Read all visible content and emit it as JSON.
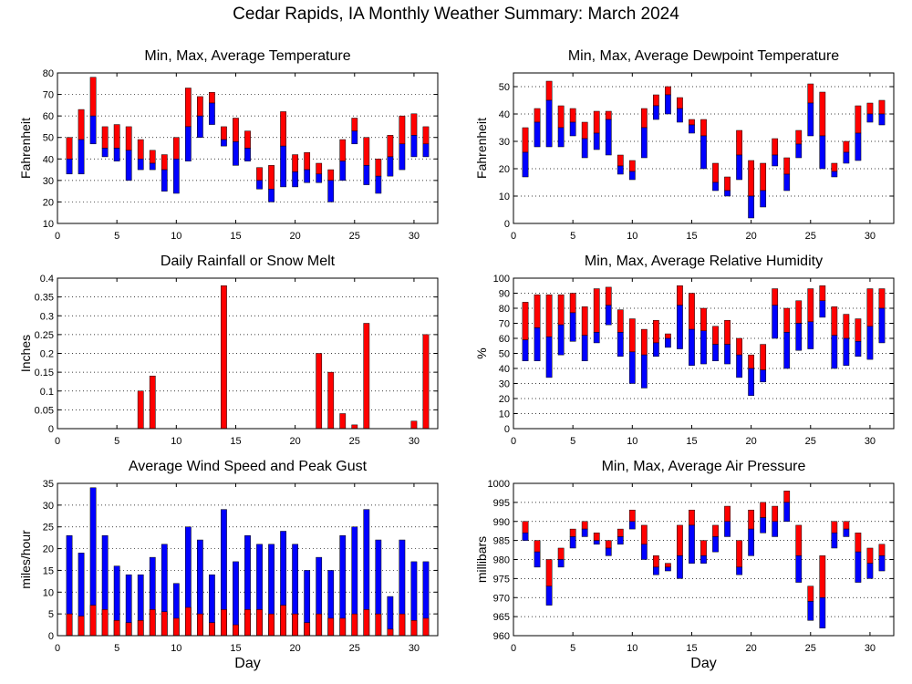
{
  "title": "Cedar Rapids, IA Monthly Weather Summary: March 2024",
  "colors": {
    "upper": "#ff0000",
    "lower": "#0000ff",
    "rain": "#ff0000"
  },
  "chart_data": [
    {
      "id": "temperature",
      "type": "bar",
      "title": "Min, Max, Average Temperature",
      "ylabel": "Fahrenheit",
      "xlabel": "",
      "xlim": [
        0,
        32
      ],
      "ylim": [
        10,
        80
      ],
      "xticks": [
        0,
        5,
        10,
        15,
        20,
        25,
        30
      ],
      "yticks": [
        10,
        20,
        30,
        40,
        50,
        60,
        70,
        80
      ],
      "grid": true,
      "series": [
        {
          "name": "Min",
          "values": [
            33,
            33,
            47,
            41,
            39,
            30,
            35,
            35,
            25,
            24,
            39,
            50,
            56,
            46,
            37,
            39,
            26,
            20,
            27,
            27,
            29,
            29,
            20,
            30,
            47,
            28,
            24,
            32,
            35,
            41,
            41
          ]
        },
        {
          "name": "Average",
          "values": [
            40,
            49,
            60,
            45,
            45,
            44,
            40,
            38,
            35,
            40,
            55,
            60,
            66,
            49,
            48,
            45,
            30,
            26,
            46,
            34,
            35,
            33,
            30,
            39,
            53,
            37,
            32,
            41,
            47,
            51,
            47
          ]
        },
        {
          "name": "Max",
          "values": [
            50,
            63,
            78,
            55,
            56,
            55,
            49,
            44,
            42,
            50,
            73,
            69,
            71,
            55,
            59,
            53,
            36,
            37,
            62,
            42,
            43,
            38,
            35,
            49,
            59,
            50,
            40,
            51,
            60,
            61,
            55
          ]
        }
      ]
    },
    {
      "id": "dewpoint",
      "type": "bar",
      "title": "Min, Max, Average Dewpoint Temperature",
      "ylabel": "Fahrenheit",
      "xlabel": "",
      "xlim": [
        0,
        32
      ],
      "ylim": [
        0,
        55
      ],
      "xticks": [
        0,
        5,
        10,
        15,
        20,
        25,
        30
      ],
      "yticks": [
        0,
        10,
        20,
        30,
        40,
        50
      ],
      "grid": true,
      "series": [
        {
          "name": "Min",
          "values": [
            17,
            28,
            28,
            28,
            32,
            24,
            27,
            25,
            18,
            16,
            24,
            38,
            40,
            37,
            33,
            20,
            12,
            10,
            16,
            2,
            6,
            21,
            12,
            24,
            32,
            20,
            17,
            22,
            23,
            37,
            36
          ]
        },
        {
          "name": "Average",
          "values": [
            26,
            37,
            45,
            35,
            37,
            31,
            33,
            38,
            21,
            19,
            35,
            43,
            47,
            42,
            36,
            32,
            15,
            12,
            25,
            10,
            12,
            25,
            18,
            29,
            44,
            32,
            19,
            26,
            33,
            40,
            40
          ]
        },
        {
          "name": "Max",
          "values": [
            35,
            42,
            52,
            43,
            42,
            37,
            41,
            41,
            25,
            23,
            42,
            47,
            50,
            46,
            38,
            38,
            22,
            17,
            34,
            23,
            22,
            31,
            24,
            34,
            51,
            48,
            22,
            30,
            43,
            44,
            45
          ]
        }
      ]
    },
    {
      "id": "rainfall",
      "type": "bar",
      "title": "Daily Rainfall or Snow Melt",
      "ylabel": "Inches",
      "xlabel": "",
      "xlim": [
        0,
        32
      ],
      "ylim": [
        0,
        0.4
      ],
      "xticks": [
        0,
        5,
        10,
        15,
        20,
        25,
        30
      ],
      "yticks": [
        0,
        0.05,
        0.1,
        0.15,
        0.2,
        0.25,
        0.3,
        0.35,
        0.4
      ],
      "ytick_labels": [
        "0",
        "0.05",
        "0.1",
        "0.15",
        "0.2",
        "0.25",
        "0.3",
        "0.35",
        "0.4"
      ],
      "grid": true,
      "series": [
        {
          "name": "Rainfall",
          "values": [
            0,
            0,
            0,
            0,
            0,
            0,
            0.1,
            0.14,
            0,
            0,
            0,
            0,
            0,
            0.38,
            0,
            0,
            0,
            0,
            0,
            0,
            0,
            0.2,
            0.15,
            0.04,
            0.01,
            0.28,
            0,
            0,
            0,
            0.02,
            0.25
          ]
        }
      ]
    },
    {
      "id": "humidity",
      "type": "bar",
      "title": "Min, Max, Average Relative Humidity",
      "ylabel": "%",
      "xlabel": "",
      "xlim": [
        0,
        32
      ],
      "ylim": [
        0,
        100
      ],
      "xticks": [
        0,
        5,
        10,
        15,
        20,
        25,
        30
      ],
      "yticks": [
        0,
        10,
        20,
        30,
        40,
        50,
        60,
        70,
        80,
        90,
        100
      ],
      "grid": true,
      "series": [
        {
          "name": "Min",
          "values": [
            45,
            45,
            34,
            49,
            58,
            45,
            57,
            69,
            48,
            30,
            27,
            48,
            54,
            53,
            42,
            43,
            45,
            43,
            34,
            22,
            31,
            60,
            40,
            52,
            53,
            74,
            40,
            42,
            48,
            46,
            57
          ]
        },
        {
          "name": "Average",
          "values": [
            59,
            67,
            61,
            69,
            77,
            62,
            64,
            82,
            64,
            51,
            49,
            57,
            60,
            82,
            66,
            65,
            56,
            56,
            49,
            40,
            39,
            82,
            64,
            70,
            71,
            85,
            62,
            60,
            58,
            68,
            80
          ]
        },
        {
          "name": "Max",
          "values": [
            84,
            89,
            89,
            89,
            90,
            81,
            93,
            94,
            79,
            73,
            66,
            72,
            63,
            95,
            90,
            80,
            68,
            72,
            60,
            49,
            56,
            93,
            80,
            85,
            93,
            95,
            81,
            76,
            73,
            93,
            93
          ]
        }
      ]
    },
    {
      "id": "wind",
      "type": "bar",
      "title": "Average Wind Speed and Peak Gust",
      "ylabel": "miles/hour",
      "xlabel": "Day",
      "xlim": [
        0,
        32
      ],
      "ylim": [
        0,
        35
      ],
      "xticks": [
        0,
        5,
        10,
        15,
        20,
        25,
        30
      ],
      "yticks": [
        0,
        5,
        10,
        15,
        20,
        25,
        30,
        35
      ],
      "grid": true,
      "series": [
        {
          "name": "Average Wind Speed",
          "values": [
            5,
            4.5,
            7,
            6,
            3.5,
            3,
            3.5,
            6,
            5.5,
            4,
            6.5,
            5,
            3,
            6,
            2.5,
            6,
            6,
            5,
            7,
            5,
            3,
            5,
            4,
            4,
            5,
            6,
            5,
            1.5,
            5,
            3.5,
            4
          ]
        },
        {
          "name": "Peak Gust",
          "values": [
            23,
            19,
            34,
            23,
            16,
            14,
            14,
            18,
            21,
            12,
            25,
            22,
            14,
            29,
            17,
            23,
            21,
            21,
            24,
            21,
            15,
            18,
            15,
            23,
            25,
            29,
            22,
            9,
            22,
            17,
            17
          ]
        }
      ]
    },
    {
      "id": "pressure",
      "type": "bar",
      "title": "Min, Max, Average Air Pressure",
      "ylabel": "millibars",
      "xlabel": "Day",
      "xlim": [
        0,
        32
      ],
      "ylim": [
        960,
        1000
      ],
      "xticks": [
        0,
        5,
        10,
        15,
        20,
        25,
        30
      ],
      "yticks": [
        960,
        965,
        970,
        975,
        980,
        985,
        990,
        995,
        1000
      ],
      "grid": true,
      "series": [
        {
          "name": "Min",
          "values": [
            985,
            978,
            968,
            978,
            983,
            986,
            984,
            981,
            984,
            988,
            980,
            976,
            977,
            975,
            979,
            979,
            982,
            986,
            976,
            981,
            987,
            986,
            990,
            974,
            964,
            962,
            983,
            986,
            974,
            975,
            977
          ]
        },
        {
          "name": "Average",
          "values": [
            987,
            982,
            973,
            980,
            986,
            988,
            985,
            983,
            986,
            990,
            984,
            978,
            978,
            981,
            989,
            981,
            986,
            990,
            978,
            988,
            991,
            990,
            995,
            981,
            969,
            970,
            987,
            988,
            982,
            979,
            981
          ]
        },
        {
          "name": "Max",
          "values": [
            990,
            985,
            980,
            983,
            988,
            990,
            987,
            985,
            988,
            993,
            989,
            981,
            979,
            989,
            993,
            985,
            989,
            994,
            985,
            993,
            995,
            994,
            998,
            989,
            973,
            981,
            990,
            990,
            987,
            983,
            984
          ]
        }
      ]
    }
  ]
}
